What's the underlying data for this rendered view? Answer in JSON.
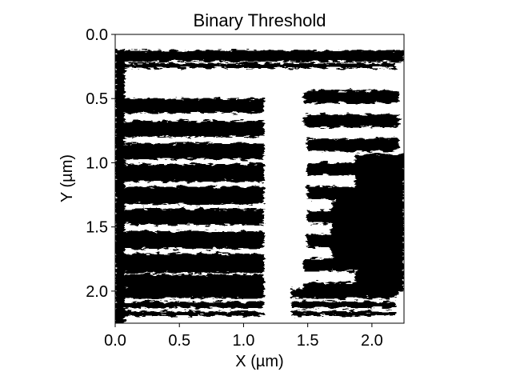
{
  "chart_data": {
    "type": "heatmap",
    "title": "Binary Threshold",
    "xlabel": "X (µm)",
    "ylabel": "Y (µm)",
    "xlim": [
      0.0,
      2.25
    ],
    "ylim": [
      2.25,
      0.0
    ],
    "xticks": [
      "0.0",
      "0.5",
      "1.0",
      "1.5",
      "2.0"
    ],
    "yticks": [
      "0.0",
      "0.5",
      "1.0",
      "1.5",
      "2.0"
    ],
    "colormap": [
      "#000000",
      "#ffffff"
    ],
    "description_values": "binary image (0 = black, 1 = white)"
  }
}
